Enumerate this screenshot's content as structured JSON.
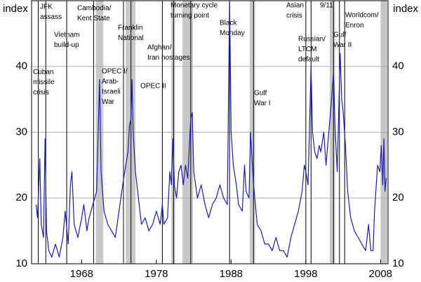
{
  "chart_data": {
    "type": "line",
    "y_label": "index",
    "y2_label": "index",
    "xlim": [
      1961.3,
      2009.0
    ],
    "xticks": [
      1968,
      1978,
      1988,
      1998,
      2008
    ],
    "ylim": [
      10,
      50
    ],
    "yticks": [
      10,
      20,
      30,
      40
    ],
    "grid": true,
    "x": [
      1961.9,
      1962.1,
      1962.4,
      1962.6,
      1962.9,
      1963.1,
      1963.3,
      1963.6,
      1964,
      1964.5,
      1965,
      1965.5,
      1965.8,
      1966.2,
      1966.5,
      1966.7,
      1967,
      1967.5,
      1968,
      1968.3,
      1968.7,
      1969,
      1969.5,
      1970,
      1970.4,
      1970.6,
      1971,
      1971.5,
      1972,
      1972.5,
      1973,
      1973.5,
      1973.9,
      1974.2,
      1974.4,
      1974.6,
      1974.75,
      1974.9,
      1975.2,
      1975.6,
      1976,
      1976.5,
      1977,
      1977.5,
      1978,
      1978.5,
      1978.8,
      1979,
      1979.5,
      1979.8,
      1980,
      1980.2,
      1980.4,
      1980.7,
      1981,
      1981.3,
      1981.6,
      1981.9,
      1982.2,
      1982.6,
      1982.8,
      1983,
      1983.5,
      1984,
      1984.5,
      1985,
      1985.5,
      1986,
      1986.5,
      1987,
      1987.5,
      1987.8,
      1988,
      1988.3,
      1988.7,
      1989,
      1989.5,
      1989.8,
      1990,
      1990.4,
      1990.6,
      1990.8,
      1991,
      1991.5,
      1992,
      1992.5,
      1993,
      1993.5,
      1994,
      1994.5,
      1995,
      1995.5,
      1996,
      1996.5,
      1997,
      1997.5,
      1997.8,
      1998,
      1998.3,
      1998.7,
      1998.9,
      1999.2,
      1999.5,
      1999.8,
      2000,
      2000.4,
      2000.7,
      2001,
      2001.3,
      2001.7,
      2001.9,
      2002.2,
      2002.6,
      2002.8,
      2003,
      2003.3,
      2003.6,
      2004,
      2004.5,
      2005,
      2005.5,
      2006,
      2006.4,
      2006.7,
      2007,
      2007.2,
      2007.6,
      2007.9,
      2008.1,
      2008.3,
      2008.45,
      2008.6,
      2008.75
    ],
    "series": [
      {
        "color": "#1c1cb0",
        "values": [
          19,
          17,
          26,
          16,
          14,
          29,
          15,
          12,
          11,
          13,
          11,
          14,
          18,
          13,
          22,
          24,
          16,
          14,
          17,
          19,
          15,
          17,
          19,
          21,
          38,
          24,
          18,
          16,
          15,
          14,
          18,
          22,
          25,
          27,
          31,
          32,
          38,
          30,
          24,
          20,
          16,
          17,
          15,
          16,
          18,
          16,
          19,
          16,
          17,
          24,
          22,
          29,
          22,
          20,
          24,
          25,
          22,
          25,
          23,
          32,
          33,
          24,
          20,
          22,
          19,
          17,
          19,
          20,
          22,
          20,
          19,
          50,
          30,
          25,
          22,
          19,
          18,
          25,
          21,
          20,
          30,
          26,
          22,
          16,
          15,
          13,
          13,
          12,
          14,
          12,
          12,
          11,
          14,
          16,
          18,
          21,
          25,
          24,
          22,
          40,
          30,
          27,
          26,
          28,
          27,
          30,
          25,
          29,
          33,
          39,
          31,
          24,
          42,
          35,
          33,
          28,
          21,
          17,
          15,
          14,
          13,
          12,
          16,
          12,
          12,
          18,
          25,
          24,
          28,
          22,
          29,
          21,
          23
        ]
      }
    ],
    "shaded_periods": [
      {
        "start": 1969.9,
        "end": 1970.9
      },
      {
        "start": 1973.9,
        "end": 1975.2
      },
      {
        "start": 1980.0,
        "end": 1980.5
      },
      {
        "start": 1981.5,
        "end": 1982.9
      },
      {
        "start": 1990.5,
        "end": 1991.2
      },
      {
        "start": 2001.2,
        "end": 2001.9
      },
      {
        "start": 2008.0,
        "end": 2008.9
      }
    ],
    "events": [
      {
        "x": 1962.2,
        "label": [
          "Cuban",
          "missile",
          "crisis"
        ]
      },
      {
        "x": 1963.2,
        "label": [
          "JFK",
          "assass"
        ]
      },
      {
        "x": 1966.0,
        "label": [
          "Vietnam",
          "build-up"
        ]
      },
      {
        "x": 1969.6,
        "label": [
          "Cambodia/",
          "Kent State"
        ]
      },
      {
        "x": 1973.6,
        "label": [
          "OPEC I/",
          "Arab-",
          "Israeli",
          "War"
        ]
      },
      {
        "x": 1974.6,
        "label": [
          "Franklin",
          "National"
        ]
      },
      {
        "x": 1978.8,
        "label": [
          "OPEC II"
        ]
      },
      {
        "x": 1980.3,
        "label": [
          "Afghan/",
          "Iran hostages"
        ]
      },
      {
        "x": 1982.6,
        "label": [
          "Monetary cycle",
          "turning point"
        ]
      },
      {
        "x": 1987.8,
        "label": [
          "Black",
          "Monday"
        ]
      },
      {
        "x": 1991.0,
        "label": [
          "Gulf",
          "War I"
        ]
      },
      {
        "x": 1998.0,
        "label": [
          "Asian",
          "crisis"
        ]
      },
      {
        "x": 1998.7,
        "label": [
          "Russian/",
          "LTCM",
          "default"
        ]
      },
      {
        "x": 2001.7,
        "label": [
          "9/11"
        ]
      },
      {
        "x": 2003.2,
        "label": [
          "Gulf",
          "War II"
        ]
      },
      {
        "x": 2002.5,
        "label": [
          "Worldcom/",
          "Enron"
        ]
      }
    ]
  }
}
